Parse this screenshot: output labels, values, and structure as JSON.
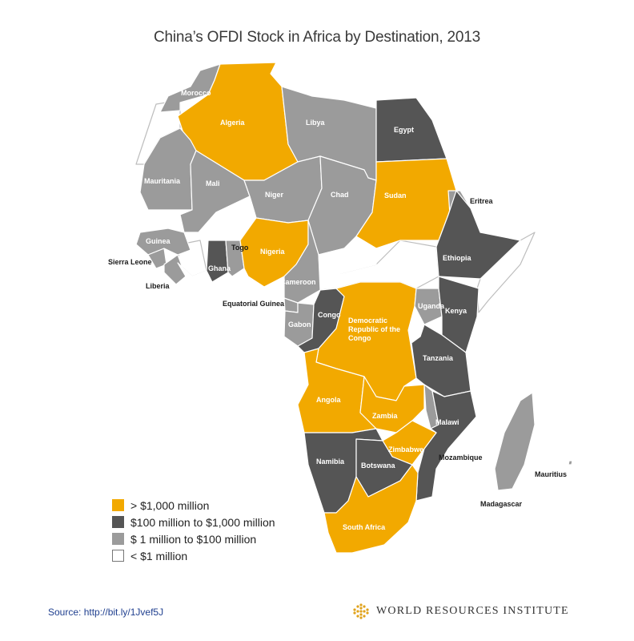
{
  "title": "China’s OFDI Stock in Africa by Destination, 2013",
  "colors": {
    "over_1000m": "#f2a900",
    "100m_to_1000m": "#555555",
    "1m_to_100m": "#9b9b9b",
    "under_1m": "#ffffff",
    "border": "#ffffff"
  },
  "legend": [
    {
      "label": "> $1,000 million",
      "category": "over_1000m"
    },
    {
      "label": "$100 million to $1,000 million",
      "category": "100m_to_1000m"
    },
    {
      "label": "$ 1 million to $100 million",
      "category": "1m_to_100m"
    },
    {
      "label": "< $1 million",
      "category": "under_1m"
    }
  ],
  "countries": [
    {
      "name": "Morocco",
      "category": "1m_to_100m"
    },
    {
      "name": "Algeria",
      "category": "over_1000m"
    },
    {
      "name": "Libya",
      "category": "1m_to_100m"
    },
    {
      "name": "Egypt",
      "category": "100m_to_1000m"
    },
    {
      "name": "Mauritania",
      "category": "1m_to_100m"
    },
    {
      "name": "Mali",
      "category": "1m_to_100m"
    },
    {
      "name": "Niger",
      "category": "1m_to_100m"
    },
    {
      "name": "Chad",
      "category": "1m_to_100m"
    },
    {
      "name": "Sudan",
      "category": "over_1000m"
    },
    {
      "name": "Eritrea",
      "category": "1m_to_100m"
    },
    {
      "name": "Guinea",
      "category": "1m_to_100m"
    },
    {
      "name": "Sierra Leone",
      "category": "1m_to_100m"
    },
    {
      "name": "Liberia",
      "category": "1m_to_100m"
    },
    {
      "name": "Ghana",
      "category": "100m_to_1000m"
    },
    {
      "name": "Togo",
      "category": "1m_to_100m"
    },
    {
      "name": "Nigeria",
      "category": "over_1000m"
    },
    {
      "name": "Cameroon",
      "category": "1m_to_100m"
    },
    {
      "name": "Ethiopia",
      "category": "100m_to_1000m"
    },
    {
      "name": "Equatorial Guinea",
      "category": "1m_to_100m"
    },
    {
      "name": "Gabon",
      "category": "1m_to_100m"
    },
    {
      "name": "Congo",
      "category": "100m_to_1000m"
    },
    {
      "name": "Democratic Republic of the Congo",
      "category": "over_1000m"
    },
    {
      "name": "Uganda",
      "category": "1m_to_100m"
    },
    {
      "name": "Kenya",
      "category": "100m_to_1000m"
    },
    {
      "name": "Tanzania",
      "category": "100m_to_1000m"
    },
    {
      "name": "Angola",
      "category": "over_1000m"
    },
    {
      "name": "Zambia",
      "category": "over_1000m"
    },
    {
      "name": "Malawi",
      "category": "1m_to_100m"
    },
    {
      "name": "Zimbabwe",
      "category": "over_1000m"
    },
    {
      "name": "Mozambique",
      "category": "100m_to_1000m"
    },
    {
      "name": "Namibia",
      "category": "100m_to_1000m"
    },
    {
      "name": "Botswana",
      "category": "100m_to_1000m"
    },
    {
      "name": "South Africa",
      "category": "over_1000m"
    },
    {
      "name": "Madagascar",
      "category": "1m_to_100m"
    },
    {
      "name": "Mauritius",
      "category": "1m_to_100m"
    }
  ],
  "source": "Source: http://bit.ly/1Jvef5J",
  "brand": "WORLD RESOURCES INSTITUTE"
}
